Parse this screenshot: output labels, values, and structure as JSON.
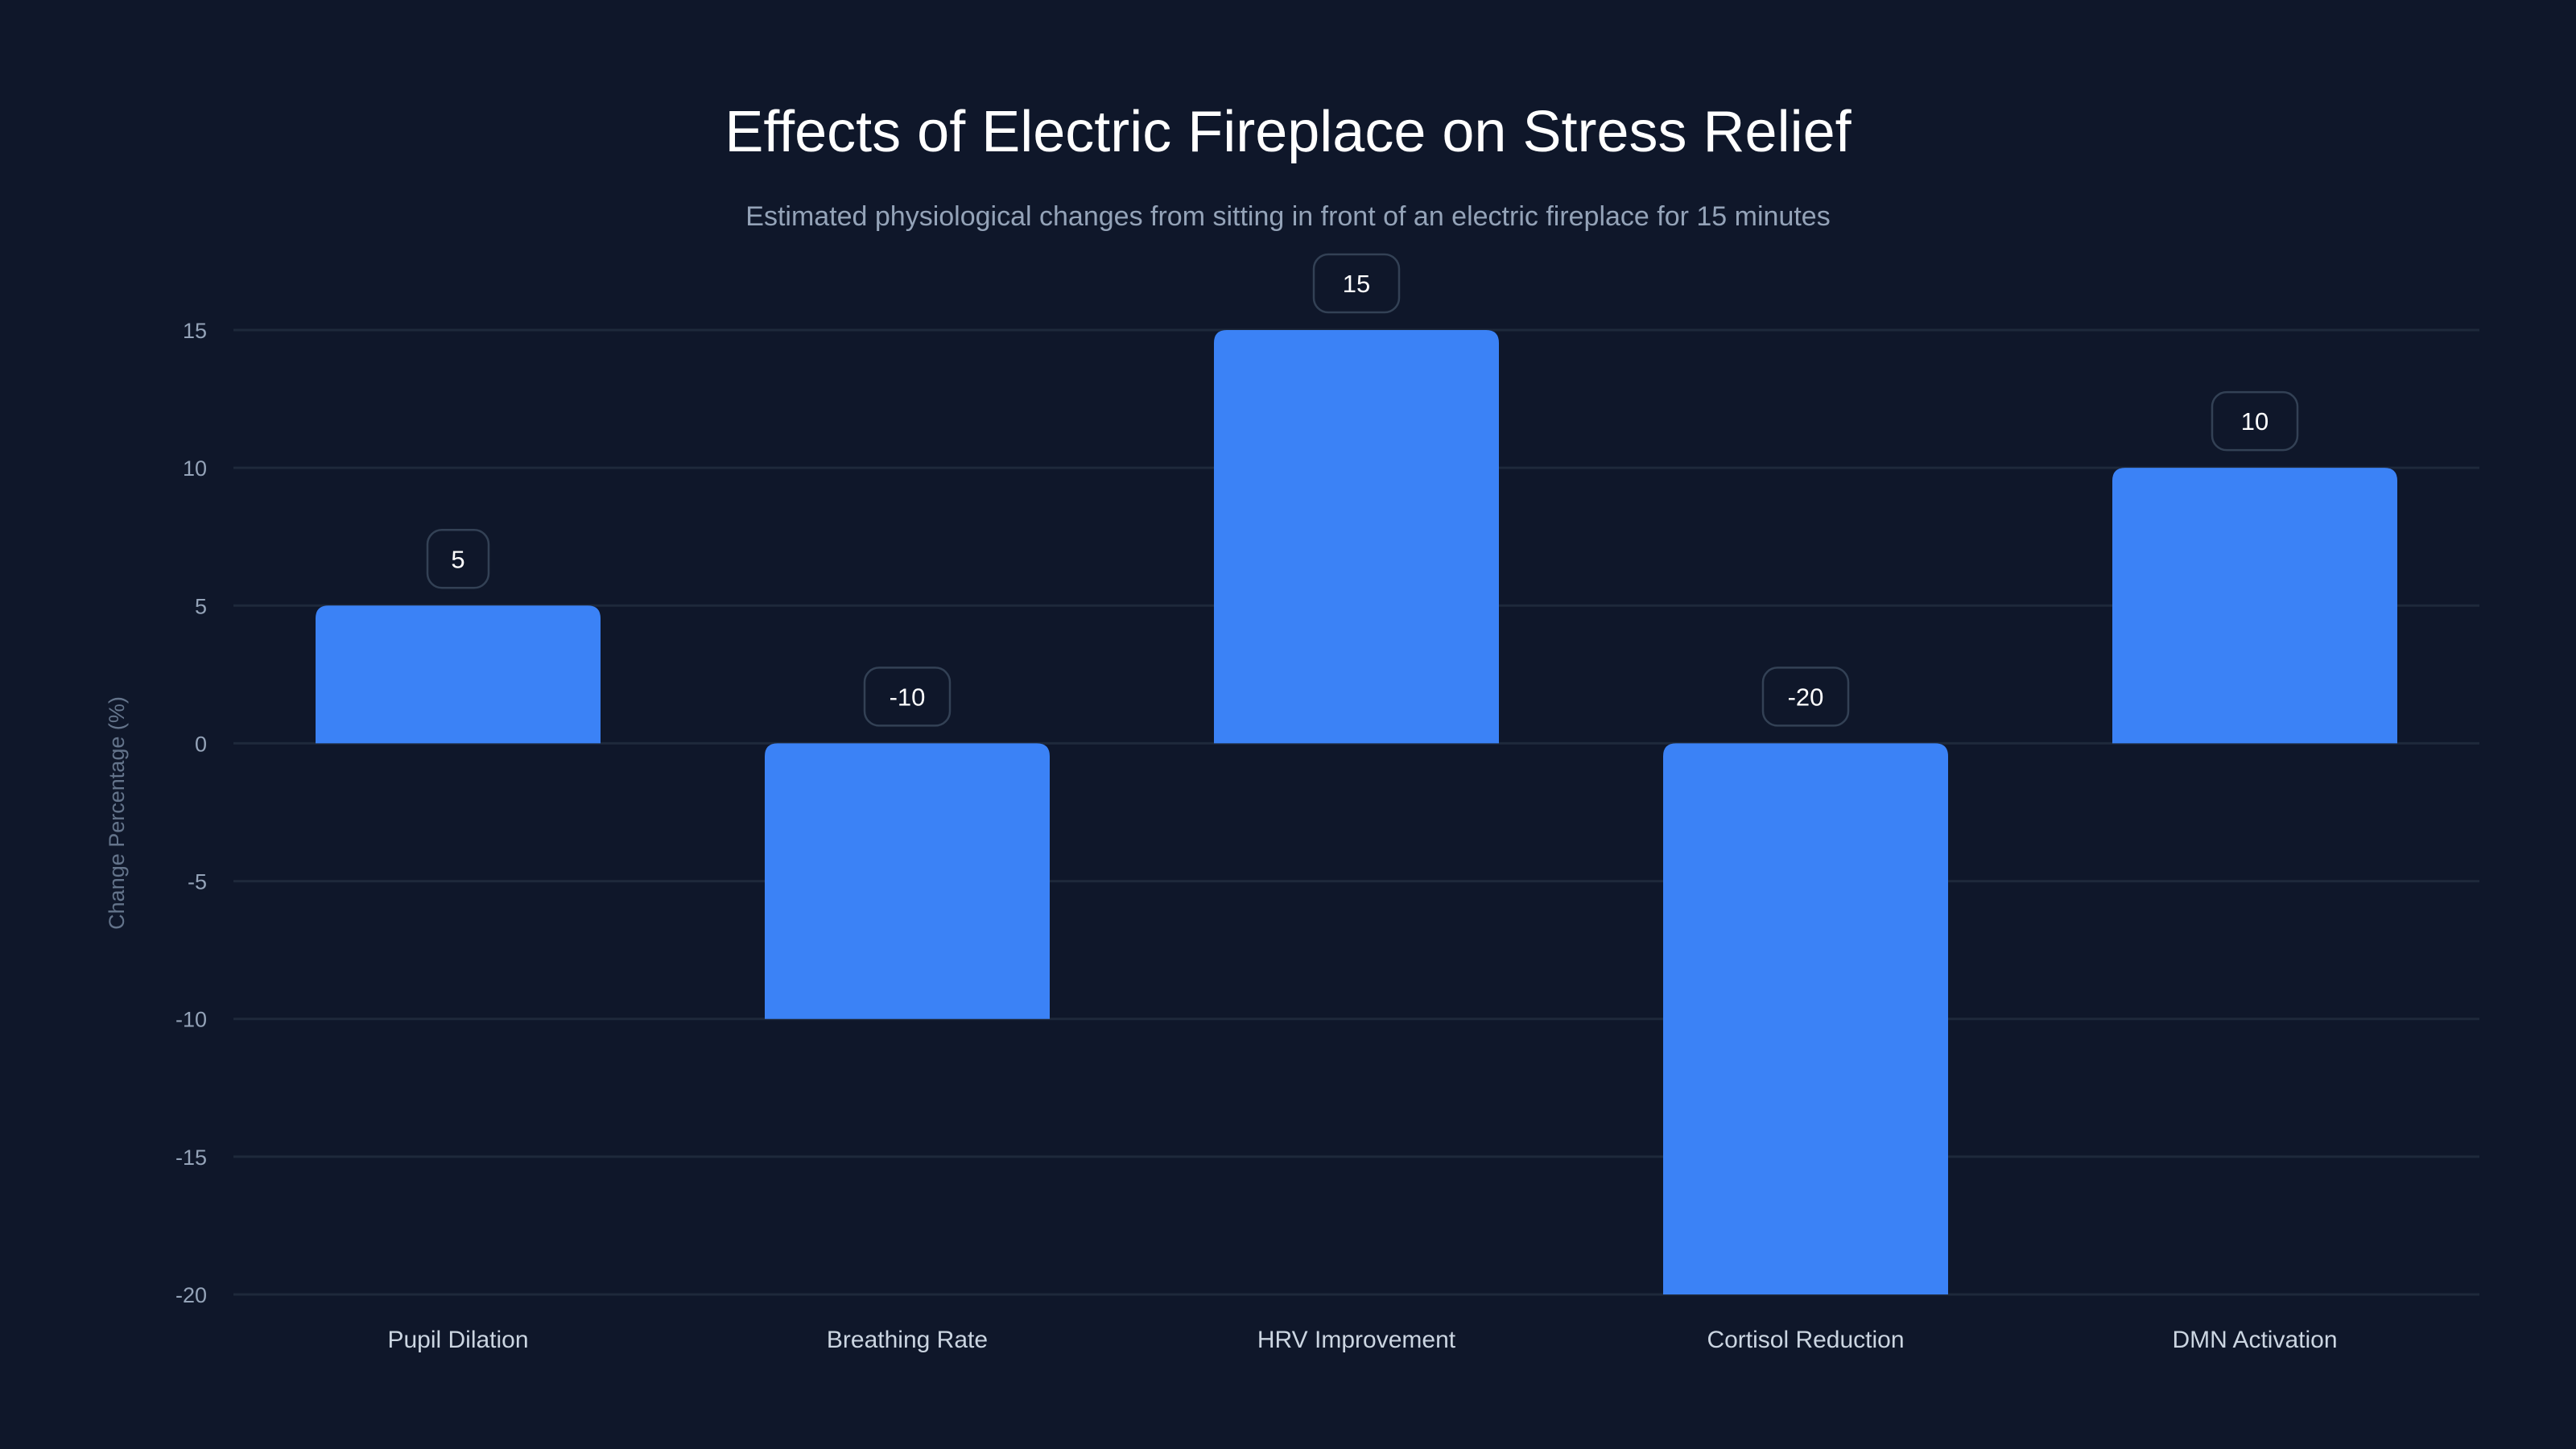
{
  "chart_data": {
    "type": "bar",
    "title": "Effects of Electric Fireplace on Stress Relief",
    "subtitle": "Estimated physiological changes from sitting in front of an electric fireplace for 15 minutes",
    "xlabel": "",
    "ylabel": "Change Percentage (%)",
    "categories": [
      "Pupil Dilation",
      "Breathing Rate",
      "HRV Improvement",
      "Cortisol Reduction",
      "DMN Activation"
    ],
    "values": [
      5,
      -10,
      15,
      -20,
      10
    ],
    "data_labels": [
      "5",
      "-10",
      "15",
      "-20",
      "10"
    ],
    "ylim": [
      -20,
      15
    ],
    "yticks": [
      15,
      10,
      5,
      0,
      -5,
      -10,
      -15,
      -20
    ],
    "ytick_labels": [
      "15",
      "10",
      "5",
      "0",
      "-5",
      "-10",
      "-15",
      "-20"
    ],
    "grid": true,
    "colors": {
      "background": "#0f172a",
      "bar": "#3b82f6",
      "grid": "#1e293b",
      "label_border": "#334155"
    }
  }
}
